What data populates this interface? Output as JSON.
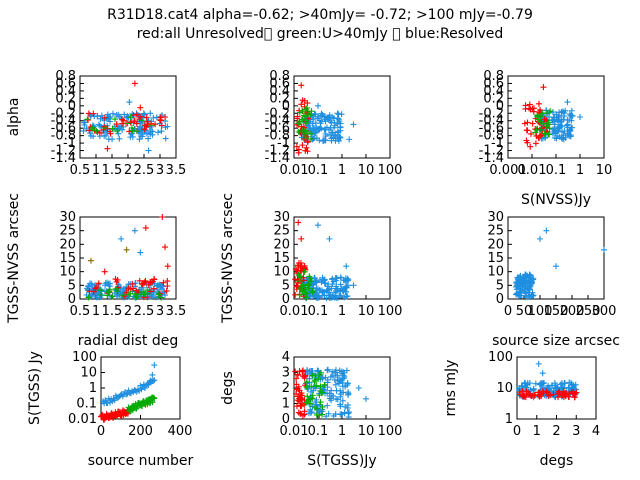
{
  "figure": {
    "title": "R31D18.cat4 alpha=-0.62; >40mJy= -0.72; >100 mJy=-0.79",
    "subtitle": "red:all Unresolved\u0000 green:U>40mJy \u0000 blue:Resolved"
  },
  "colors": {
    "red": "#ff0000",
    "green": "#00aa00",
    "blue": "#1f8fe0",
    "olive": "#8b6b00"
  },
  "chart_data": [
    {
      "type": "scatter",
      "xlabel": "",
      "ylabel": "alpha",
      "xscale": "linear",
      "yscale": "linear",
      "xlim": [
        0,
        3.5
      ],
      "ylim": [
        -1.4,
        0.8
      ],
      "xticks": [
        "0.5",
        "1",
        "1.5",
        "2",
        "2.5",
        "3",
        "3.5"
      ],
      "yticks": [
        "-1.4",
        "-1.2",
        "-1",
        "-0.8",
        "-0.6",
        "-0.4",
        "-0.2",
        "0",
        "0.2",
        "0.4",
        "0.6",
        "0.8"
      ],
      "clusters": [
        {
          "series": "blue",
          "x": [
            0.1,
            3.2
          ],
          "y": [
            -0.9,
            -0.2
          ],
          "n": 130
        },
        {
          "series": "red",
          "x": [
            0.2,
            3.0
          ],
          "y": [
            -0.75,
            -0.2
          ],
          "n": 40
        },
        {
          "series": "green",
          "x": [
            0.2,
            2.8
          ],
          "y": [
            -0.7,
            -0.3
          ],
          "n": 15
        }
      ],
      "points": [
        {
          "series": "red",
          "x": 2.0,
          "y": 0.6
        },
        {
          "series": "red",
          "x": 1.0,
          "y": -1.15
        },
        {
          "series": "red",
          "x": 3.1,
          "y": -0.3
        },
        {
          "series": "red",
          "x": 2.2,
          "y": -0.05
        },
        {
          "series": "blue",
          "x": 2.5,
          "y": -1.2
        },
        {
          "series": "blue",
          "x": 1.8,
          "y": 0.1
        }
      ]
    },
    {
      "type": "scatter",
      "xlabel": "",
      "ylabel": "",
      "xscale": "log",
      "yscale": "linear",
      "xlim": [
        0.01,
        100
      ],
      "ylim": [
        -1.4,
        0.8
      ],
      "xticks": [
        "0.01",
        "0.1",
        "1",
        "10",
        "100"
      ],
      "yticks": [
        "-1.4",
        "-1.2",
        "-1",
        "-0.8",
        "-0.6",
        "-0.4",
        "-0.2",
        "0",
        "0.2",
        "0.4",
        "0.6",
        "0.8"
      ],
      "clusters": [
        {
          "series": "blue",
          "x": [
            0.02,
            1.0
          ],
          "y": [
            -0.95,
            -0.2
          ],
          "n": 120
        },
        {
          "series": "red",
          "x": [
            0.012,
            0.04
          ],
          "y": [
            -1.3,
            0.2
          ],
          "n": 40
        },
        {
          "series": "green",
          "x": [
            0.015,
            0.06
          ],
          "y": [
            -0.9,
            0.0
          ],
          "n": 25
        }
      ],
      "points": [
        {
          "series": "red",
          "x": 0.02,
          "y": 0.55
        },
        {
          "series": "blue",
          "x": 2.0,
          "y": -0.9
        },
        {
          "series": "blue",
          "x": 0.1,
          "y": 0.0
        },
        {
          "series": "blue",
          "x": 3.0,
          "y": -0.5
        }
      ]
    },
    {
      "type": "scatter",
      "xlabel": "S(NVSS)Jy",
      "ylabel": "",
      "xscale": "log",
      "yscale": "linear",
      "xlim": [
        0.001,
        10
      ],
      "ylim": [
        -1.4,
        0.8
      ],
      "xticks": [
        "0.001",
        "0.01",
        "0.1",
        "1",
        "10"
      ],
      "yticks": [
        "-1.4",
        "-1.2",
        "-1",
        "-0.8",
        "-0.6",
        "-0.4",
        "-0.2",
        "0",
        "0.2",
        "0.4",
        "0.6",
        "0.8"
      ],
      "clusters": [
        {
          "series": "blue",
          "x": [
            0.02,
            0.5
          ],
          "y": [
            -0.9,
            -0.1
          ],
          "n": 120
        },
        {
          "series": "red",
          "x": [
            0.005,
            0.05
          ],
          "y": [
            -1.1,
            0.1
          ],
          "n": 40
        },
        {
          "series": "green",
          "x": [
            0.01,
            0.06
          ],
          "y": [
            -0.8,
            -0.1
          ],
          "n": 20
        }
      ],
      "points": [
        {
          "series": "red",
          "x": 0.03,
          "y": 0.5
        },
        {
          "series": "blue",
          "x": 1.0,
          "y": -0.3
        },
        {
          "series": "blue",
          "x": 0.3,
          "y": 0.1
        }
      ]
    },
    {
      "type": "scatter",
      "xlabel": "radial dist deg",
      "ylabel": "TGSS-NVSS arcsec",
      "xscale": "linear",
      "yscale": "linear",
      "xlim": [
        0,
        3.5
      ],
      "ylim": [
        0,
        30
      ],
      "xticks": [
        "0.5",
        "1",
        "1.5",
        "2",
        "2.5",
        "3",
        "3.5"
      ],
      "yticks": [
        "0",
        "5",
        "10",
        "15",
        "20",
        "25",
        "30"
      ],
      "clusters": [
        {
          "series": "blue",
          "x": [
            0.2,
            3.1
          ],
          "y": [
            0.5,
            6
          ],
          "n": 140
        },
        {
          "series": "red",
          "x": [
            0.3,
            3.2
          ],
          "y": [
            0.5,
            8
          ],
          "n": 40
        },
        {
          "series": "green",
          "x": [
            0.3,
            3.0
          ],
          "y": [
            0.5,
            4
          ],
          "n": 25
        }
      ],
      "points": [
        {
          "series": "red",
          "x": 3.0,
          "y": 30
        },
        {
          "series": "red",
          "x": 3.1,
          "y": 19
        },
        {
          "series": "red",
          "x": 3.2,
          "y": 12
        },
        {
          "series": "red",
          "x": 0.9,
          "y": 10
        },
        {
          "series": "red",
          "x": 2.4,
          "y": 26
        },
        {
          "series": "blue",
          "x": 2.0,
          "y": 25
        },
        {
          "series": "blue",
          "x": 1.5,
          "y": 22
        },
        {
          "series": "blue",
          "x": 2.2,
          "y": 17
        },
        {
          "series": "olive",
          "x": 0.4,
          "y": 14
        },
        {
          "series": "olive",
          "x": 1.7,
          "y": 18
        }
      ]
    },
    {
      "type": "scatter",
      "xlabel": "",
      "ylabel": "TGSS-NVSS arcsec",
      "xscale": "log",
      "yscale": "linear",
      "xlim": [
        0.01,
        100
      ],
      "ylim": [
        0,
        30
      ],
      "xticks": [
        "0.01",
        "0.1",
        "1",
        "10",
        "100"
      ],
      "yticks": [
        "0",
        "5",
        "10",
        "15",
        "20",
        "25",
        "30"
      ],
      "clusters": [
        {
          "series": "blue",
          "x": [
            0.02,
            2.0
          ],
          "y": [
            0.3,
            8
          ],
          "n": 140
        },
        {
          "series": "red",
          "x": [
            0.011,
            0.03
          ],
          "y": [
            0.3,
            14
          ],
          "n": 40
        },
        {
          "series": "green",
          "x": [
            0.015,
            0.06
          ],
          "y": [
            0.3,
            10
          ],
          "n": 25
        }
      ],
      "points": [
        {
          "series": "red",
          "x": 0.015,
          "y": 28
        },
        {
          "series": "red",
          "x": 0.02,
          "y": 22
        },
        {
          "series": "blue",
          "x": 0.1,
          "y": 27
        },
        {
          "series": "blue",
          "x": 0.3,
          "y": 22
        },
        {
          "series": "blue",
          "x": 1.5,
          "y": 12
        },
        {
          "series": "blue",
          "x": 3.0,
          "y": 5
        }
      ]
    },
    {
      "type": "scatter",
      "xlabel": "source size arcsec",
      "ylabel": "",
      "xscale": "linear",
      "yscale": "linear",
      "xlim": [
        0,
        300
      ],
      "ylim": [
        0,
        30
      ],
      "xticks": [
        "0",
        "50",
        "100",
        "150",
        "200",
        "250",
        "300"
      ],
      "yticks": [
        "0",
        "5",
        "10",
        "15",
        "20",
        "25",
        "30"
      ],
      "clusters": [
        {
          "series": "blue",
          "x": [
            25,
            80
          ],
          "y": [
            0.5,
            9
          ],
          "n": 100
        }
      ],
      "points": [
        {
          "series": "blue",
          "x": 120,
          "y": 25
        },
        {
          "series": "blue",
          "x": 100,
          "y": 22
        },
        {
          "series": "blue",
          "x": 150,
          "y": 12
        },
        {
          "series": "blue",
          "x": 300,
          "y": 18
        }
      ]
    },
    {
      "type": "scatter",
      "xlabel": "source number",
      "ylabel": "S(TGSS) Jy",
      "xscale": "linear",
      "yscale": "log",
      "xlim": [
        0,
        400
      ],
      "ylim": [
        0.01,
        100
      ],
      "xticks": [
        "0",
        "200",
        "400"
      ],
      "yticks": [
        "0.01",
        "0.1",
        "1",
        "10",
        "100"
      ],
      "curves": [
        {
          "series": "red",
          "x": [
            0,
            140
          ],
          "y": [
            0.012,
            0.03
          ]
        },
        {
          "series": "green",
          "x": [
            140,
            270
          ],
          "y": [
            0.04,
            0.2
          ]
        },
        {
          "series": "blue",
          "x": [
            10,
            270
          ],
          "y": [
            0.1,
            2.5
          ]
        }
      ],
      "points": [
        {
          "series": "blue",
          "x": 260,
          "y": 7
        },
        {
          "series": "blue",
          "x": 270,
          "y": 30
        },
        {
          "series": "blue",
          "x": 250,
          "y": 3
        }
      ]
    },
    {
      "type": "scatter",
      "xlabel": "S(TGSS)Jy",
      "ylabel": "degs",
      "xscale": "log",
      "yscale": "linear",
      "xlim": [
        0.01,
        100
      ],
      "ylim": [
        0,
        4
      ],
      "xticks": [
        "0.01",
        "0.1",
        "1",
        "10",
        "100"
      ],
      "yticks": [
        "0",
        "1",
        "2",
        "3",
        "4"
      ],
      "clusters": [
        {
          "series": "blue",
          "x": [
            0.03,
            2.0
          ],
          "y": [
            0.1,
            3.2
          ],
          "n": 140
        },
        {
          "series": "red",
          "x": [
            0.011,
            0.03
          ],
          "y": [
            0.1,
            3.2
          ],
          "n": 45
        },
        {
          "series": "green",
          "x": [
            0.03,
            0.2
          ],
          "y": [
            0.2,
            3.0
          ],
          "n": 30
        }
      ],
      "points": [
        {
          "series": "blue",
          "x": 10,
          "y": 1.3
        },
        {
          "series": "blue",
          "x": 5,
          "y": 2.0
        }
      ]
    },
    {
      "type": "scatter",
      "xlabel": "degs",
      "ylabel": "rms mJy",
      "xscale": "linear",
      "yscale": "log",
      "xlim": [
        0,
        4
      ],
      "ylim": [
        1,
        100
      ],
      "xticks": [
        "0",
        "1",
        "2",
        "3",
        "4"
      ],
      "yticks": [
        "1",
        "10",
        "100"
      ],
      "clusters": [
        {
          "series": "blue",
          "x": [
            0.1,
            3.0
          ],
          "y": [
            5,
            15
          ],
          "n": 120
        },
        {
          "series": "red",
          "x": [
            0.1,
            3.1
          ],
          "y": [
            5,
            8
          ],
          "n": 60
        }
      ],
      "points": [
        {
          "series": "blue",
          "x": 1.1,
          "y": 60
        },
        {
          "series": "blue",
          "x": 1.3,
          "y": 30
        }
      ]
    }
  ]
}
